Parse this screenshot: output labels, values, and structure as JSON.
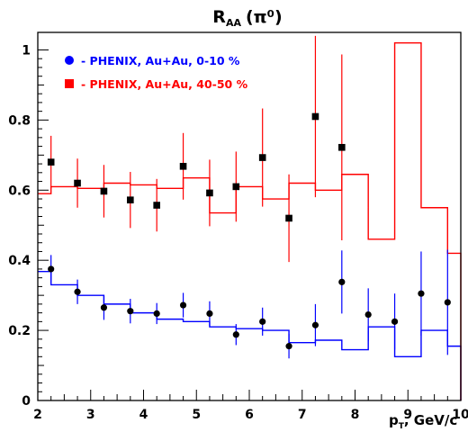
{
  "chart_data": {
    "type": "scatter",
    "title": "R_AA (π⁰)",
    "title_main": "R",
    "title_sub": "AA",
    "title_rest": "(π⁰)",
    "xlabel": "pT, GeV/c",
    "xlabel_main": "p",
    "xlabel_sub": "T",
    "xlabel_rest": ", GeV/c",
    "xlim": [
      2,
      10
    ],
    "ylim": [
      0,
      1.05
    ],
    "x_ticks": [
      2,
      3,
      4,
      5,
      6,
      7,
      8,
      9,
      10
    ],
    "y_ticks": [
      0,
      0.2,
      0.4,
      0.6,
      0.8,
      1
    ],
    "legend_position": "top-left",
    "grid": false,
    "series": [
      {
        "name": "- PHENIX, Au+Au, 0-10 %",
        "marker": "circle",
        "color": "#0000ff",
        "points": [
          {
            "x": 2.25,
            "y": 0.375,
            "err": 0.04
          },
          {
            "x": 2.75,
            "y": 0.31,
            "err": 0.035
          },
          {
            "x": 3.25,
            "y": 0.265,
            "err": 0.035
          },
          {
            "x": 3.75,
            "y": 0.255,
            "err": 0.035
          },
          {
            "x": 4.25,
            "y": 0.248,
            "err": 0.03
          },
          {
            "x": 4.75,
            "y": 0.272,
            "err": 0.035
          },
          {
            "x": 5.25,
            "y": 0.248,
            "err": 0.035
          },
          {
            "x": 5.75,
            "y": 0.188,
            "err": 0.03
          },
          {
            "x": 6.25,
            "y": 0.225,
            "err": 0.04
          },
          {
            "x": 6.75,
            "y": 0.155,
            "err": 0.035
          },
          {
            "x": 7.25,
            "y": 0.215,
            "err": 0.06
          },
          {
            "x": 7.75,
            "y": 0.338,
            "err": 0.09
          },
          {
            "x": 8.25,
            "y": 0.245,
            "err": 0.075
          },
          {
            "x": 8.75,
            "y": 0.225,
            "err": 0.08
          },
          {
            "x": 9.25,
            "y": 0.305,
            "err": 0.12
          },
          {
            "x": 9.75,
            "y": 0.28,
            "err": 0.15
          }
        ],
        "model_edges": [
          2,
          2.25,
          2.75,
          3.25,
          3.75,
          4.25,
          4.75,
          5.25,
          5.75,
          6.25,
          6.75,
          7.25,
          7.75,
          8.25,
          8.75,
          9.25,
          9.75,
          10
        ],
        "model_values": [
          0.368,
          0.33,
          0.3,
          0.275,
          0.25,
          0.232,
          0.225,
          0.21,
          0.205,
          0.2,
          0.165,
          0.172,
          0.145,
          0.21,
          0.125,
          0.2,
          0.155
        ]
      },
      {
        "name": "- PHENIX, Au+Au, 40-50 %",
        "marker": "square",
        "color": "#ff0000",
        "points": [
          {
            "x": 2.25,
            "y": 0.68,
            "err": 0.075
          },
          {
            "x": 2.75,
            "y": 0.62,
            "err": 0.07
          },
          {
            "x": 3.25,
            "y": 0.597,
            "err": 0.075
          },
          {
            "x": 3.75,
            "y": 0.572,
            "err": 0.08
          },
          {
            "x": 4.25,
            "y": 0.557,
            "err": 0.075
          },
          {
            "x": 4.75,
            "y": 0.668,
            "err": 0.095
          },
          {
            "x": 5.25,
            "y": 0.592,
            "err": 0.095
          },
          {
            "x": 5.75,
            "y": 0.61,
            "err": 0.1
          },
          {
            "x": 6.25,
            "y": 0.693,
            "err": 0.14
          },
          {
            "x": 6.75,
            "y": 0.52,
            "err": 0.125
          },
          {
            "x": 7.25,
            "y": 0.81,
            "err": 0.23
          },
          {
            "x": 7.75,
            "y": 0.722,
            "err": 0.265
          }
        ],
        "model_edges": [
          2,
          2.25,
          2.75,
          3.25,
          3.75,
          4.25,
          4.75,
          5.25,
          5.75,
          6.25,
          6.75,
          7.25,
          7.75,
          8.25,
          8.75,
          9.25,
          9.75,
          10
        ],
        "model_values": [
          0.59,
          0.61,
          0.605,
          0.62,
          0.615,
          0.605,
          0.635,
          0.535,
          0.61,
          0.575,
          0.62,
          0.6,
          0.645,
          0.46,
          1.02,
          0.55,
          0.42
        ]
      }
    ]
  }
}
